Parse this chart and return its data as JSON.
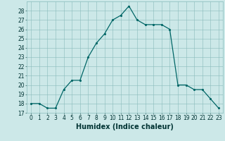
{
  "x": [
    0,
    1,
    2,
    3,
    4,
    5,
    6,
    7,
    8,
    9,
    10,
    11,
    12,
    13,
    14,
    15,
    16,
    17,
    18,
    19,
    20,
    21,
    22,
    23
  ],
  "y": [
    18,
    18,
    17.5,
    17.5,
    19.5,
    20.5,
    20.5,
    23,
    24.5,
    25.5,
    27,
    27.5,
    28.5,
    27,
    26.5,
    26.5,
    26.5,
    26,
    20,
    20,
    19.5,
    19.5,
    18.5,
    17.5
  ],
  "xlabel": "Humidex (Indice chaleur)",
  "xlim": [
    -0.5,
    23.5
  ],
  "ylim": [
    17,
    29
  ],
  "yticks": [
    17,
    18,
    19,
    20,
    21,
    22,
    23,
    24,
    25,
    26,
    27,
    28
  ],
  "xticks": [
    0,
    1,
    2,
    3,
    4,
    5,
    6,
    7,
    8,
    9,
    10,
    11,
    12,
    13,
    14,
    15,
    16,
    17,
    18,
    19,
    20,
    21,
    22,
    23
  ],
  "line_color": "#006666",
  "marker_color": "#006666",
  "bg_color": "#cce8e8",
  "grid_color": "#88bbbb",
  "axis_fontsize": 7,
  "tick_fontsize": 5.5,
  "xlabel_fontsize": 7
}
